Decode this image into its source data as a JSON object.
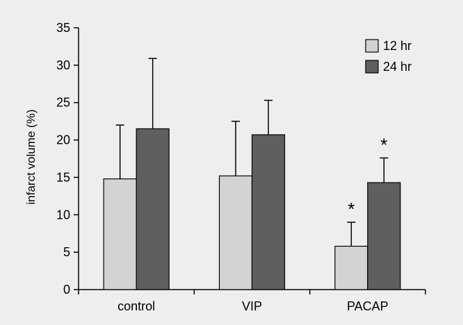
{
  "chart_data": {
    "type": "bar",
    "title": "",
    "xlabel": "",
    "ylabel": "infarct volume (%)",
    "ylim": [
      0,
      35
    ],
    "yticks": [
      0,
      5,
      10,
      15,
      20,
      25,
      30,
      35
    ],
    "grid": false,
    "legend_position": "top-right",
    "categories": [
      "control",
      "VIP",
      "PACAP"
    ],
    "series": [
      {
        "name": "12 hr",
        "color": "#d3d3d3",
        "values": [
          14.8,
          15.2,
          5.8
        ],
        "error": [
          7.2,
          7.3,
          3.2
        ],
        "annotations": [
          "",
          "",
          "*"
        ]
      },
      {
        "name": "24 hr",
        "color": "#5f5f5f",
        "values": [
          21.5,
          20.7,
          14.3
        ],
        "error": [
          9.4,
          4.6,
          3.3
        ],
        "annotations": [
          "",
          "",
          "*"
        ]
      }
    ]
  }
}
